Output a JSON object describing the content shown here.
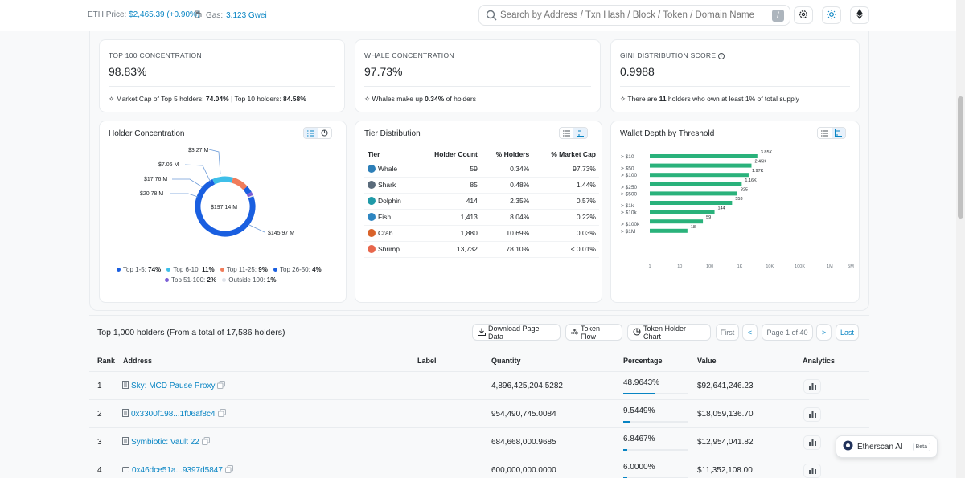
{
  "topbar": {
    "eth_label": "ETH Price:",
    "eth_value": "$2,465.39 (+0.90%)",
    "gas_label": "Gas:",
    "gas_value": "3.123 Gwei",
    "search_placeholder": "Search by Address / Txn Hash / Block / Token / Domain Name",
    "slash_key": "/"
  },
  "stats": [
    {
      "title": "TOP 100 CONCENTRATION",
      "value": "98.83%",
      "foot_pre": "Market Cap of Top 5 holders: ",
      "foot_b1": "74.04%",
      "foot_mid": " | Top 10 holders: ",
      "foot_b2": "84.58%"
    },
    {
      "title": "WHALE CONCENTRATION",
      "value": "97.73%",
      "foot_pre": "Whales make up ",
      "foot_b1": "0.34%",
      "foot_mid": " of holders",
      "foot_b2": ""
    },
    {
      "title": "GINI DISTRIBUTION SCORE",
      "value": "0.9988",
      "foot_pre": "There are ",
      "foot_b1": "11",
      "foot_mid": " holders who own at least 1% of total supply",
      "foot_b2": ""
    }
  ],
  "holder_concentration": {
    "title": "Holder Concentration",
    "center_label": "$197.14 M",
    "callouts": [
      "$3.27 M",
      "$7.06 M",
      "$17.76 M",
      "$20.78 M",
      "$145.97 M"
    ],
    "legend": [
      {
        "label": "Top 1-5:",
        "value": "74%",
        "color": "#1a5fe0"
      },
      {
        "label": "Top 6-10:",
        "value": "11%",
        "color": "#3ebfe9"
      },
      {
        "label": "Top 11-25:",
        "value": "9%",
        "color": "#f07c5a"
      },
      {
        "label": "Top 26-50:",
        "value": "4%",
        "color": "#1a5fe0"
      },
      {
        "label": "Top 51-100:",
        "value": "2%",
        "color": "#7b5fd6"
      },
      {
        "label": "Outside 100:",
        "value": "1%",
        "color": "#dfe3ea"
      }
    ]
  },
  "tier_distribution": {
    "title": "Tier Distribution",
    "headers": [
      "Tier",
      "Holder Count",
      "% Holders",
      "% Market Cap"
    ],
    "rows": [
      {
        "tier": "Whale",
        "count": "59",
        "holders": "0.34%",
        "mcap": "97.73%",
        "color": "#2d7fb8"
      },
      {
        "tier": "Shark",
        "count": "85",
        "holders": "0.48%",
        "mcap": "1.44%",
        "color": "#5a6b7b"
      },
      {
        "tier": "Dolphin",
        "count": "414",
        "holders": "2.35%",
        "mcap": "0.57%",
        "color": "#1f9aa8"
      },
      {
        "tier": "Fish",
        "count": "1,413",
        "holders": "8.04%",
        "mcap": "0.22%",
        "color": "#2e86c1"
      },
      {
        "tier": "Crab",
        "count": "1,880",
        "holders": "10.69%",
        "mcap": "0.03%",
        "color": "#d9632b"
      },
      {
        "tier": "Shrimp",
        "count": "13,732",
        "holders": "78.10%",
        "mcap": "< 0.01%",
        "color": "#e8674c"
      }
    ]
  },
  "wallet_depth": {
    "title": "Wallet Depth by Threshold",
    "x_ticks": [
      "1",
      "10",
      "100",
      "1K",
      "10K",
      "100K",
      "1M",
      "5M"
    ]
  },
  "chart_data": {
    "type": "bar",
    "title": "Wallet Depth by Threshold",
    "categories": [
      "> $10",
      "> $50",
      "> $100",
      "> $250",
      "> $500",
      "> $1k",
      "> $10k",
      "> $100k",
      "> $1M"
    ],
    "values": [
      3850,
      2450,
      1970,
      1160,
      825,
      553,
      144,
      59,
      18
    ],
    "value_labels": [
      "3.85K",
      "2.45K",
      "1.97K",
      "1.16K",
      "825",
      "553",
      "144",
      "59",
      "18"
    ],
    "x_scale": "log",
    "xlim": [
      1,
      5000000
    ],
    "color": "#2ab27b"
  },
  "holders": {
    "heading": "Top 1,000 holders (From a total of 17,586 holders)",
    "buttons": {
      "download": "Download Page Data",
      "flow": "Token Flow",
      "chart": "Token Holder Chart",
      "first": "First",
      "prev": "<",
      "page": "Page 1 of 40",
      "next": ">",
      "last": "Last"
    },
    "columns": {
      "rank": "Rank",
      "address": "Address",
      "label": "Label",
      "quantity": "Quantity",
      "percentage": "Percentage",
      "value": "Value",
      "analytics": "Analytics"
    },
    "rows": [
      {
        "rank": "1",
        "address": "Sky: MCD Pause Proxy",
        "quantity": "4,896,425,204.5282",
        "percentage": "48.9643%",
        "pct": 48.9643,
        "value": "$92,641,246.23"
      },
      {
        "rank": "2",
        "address": "0x3300f198...1f06af8c4",
        "quantity": "954,490,745.0084",
        "percentage": "9.5449%",
        "pct": 9.5449,
        "value": "$18,059,136.70"
      },
      {
        "rank": "3",
        "address": "Symbiotic: Vault 22",
        "quantity": "684,668,000.9685",
        "percentage": "6.8467%",
        "pct": 6.8467,
        "value": "$12,954,041.82"
      },
      {
        "rank": "4",
        "address": "0x46dce51a...9397d5847",
        "quantity": "600,000,000.0000",
        "percentage": "6.0000%",
        "pct": 6.0,
        "value": "$11,352,108.00"
      }
    ]
  },
  "ai": {
    "label": "Etherscan AI",
    "badge": "Beta"
  }
}
